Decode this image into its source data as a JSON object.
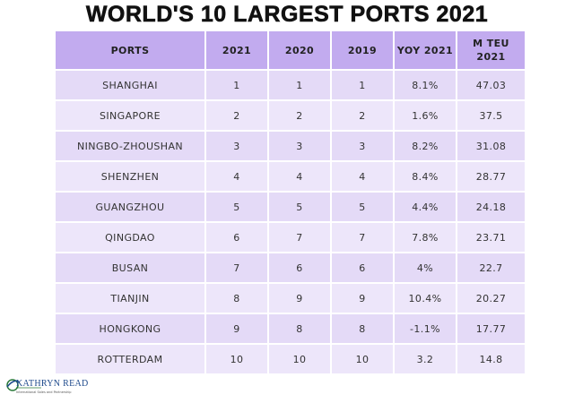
{
  "header": {
    "title": "WORLD'S 10 LARGEST PORTS 2021"
  },
  "table": {
    "columns": [
      "PORTS",
      "2021",
      "2020",
      "2019",
      "YOY 2021",
      "M TEU\n2021"
    ],
    "rows": [
      [
        "SHANGHAI",
        "1",
        "1",
        "1",
        "8.1%",
        "47.03"
      ],
      [
        "SINGAPORE",
        "2",
        "2",
        "2",
        "1.6%",
        "37.5"
      ],
      [
        "NINGBO-ZHOUSHAN",
        "3",
        "3",
        "3",
        "8.2%",
        "31.08"
      ],
      [
        "SHENZHEN",
        "4",
        "4",
        "4",
        "8.4%",
        "28.77"
      ],
      [
        "GUANGZHOU",
        "5",
        "5",
        "5",
        "4.4%",
        "24.18"
      ],
      [
        "QINGDAO",
        "6",
        "7",
        "7",
        "7.8%",
        "23.71"
      ],
      [
        "BUSAN",
        "7",
        "6",
        "6",
        "4%",
        "22.7"
      ],
      [
        "TIANJIN",
        "8",
        "9",
        "9",
        "10.4%",
        "20.27"
      ],
      [
        "HONGKONG",
        "9",
        "8",
        "8",
        "-1.1%",
        "17.77"
      ],
      [
        "ROTTERDAM",
        "10",
        "10",
        "10",
        "3.2",
        "14.8"
      ]
    ]
  },
  "logo": {
    "name": "KATHRYN READ",
    "tagline": "International Sales and Partnership"
  }
}
